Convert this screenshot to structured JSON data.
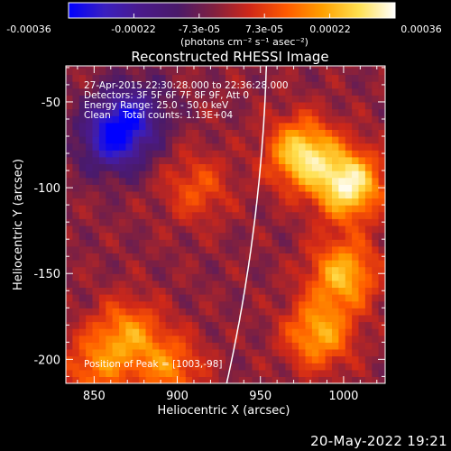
{
  "chart_data": {
    "type": "heatmap",
    "title": "Reconstructed RHESSI Image",
    "xlabel": "Heliocentric X (arcsec)",
    "ylabel": "Heliocentric Y (arcsec)",
    "xlim": [
      833,
      1025
    ],
    "ylim": [
      -214,
      -29
    ],
    "x_ticks": [
      850,
      900,
      950,
      1000
    ],
    "y_ticks": [
      -50,
      -100,
      -150,
      -200
    ],
    "colorbar": {
      "ticks": [
        "-0.00036",
        "-0.00022",
        "-7.3e-05",
        "7.3e-05",
        "0.00022",
        "0.00036"
      ],
      "range": [
        -0.00036,
        0.00036
      ],
      "unit_label": "(photons cm⁻² s⁻¹ asec⁻²)",
      "colors": [
        "#0000ff",
        "#3a1fbf",
        "#4a1a8a",
        "#4a1a6a",
        "#802040",
        "#d02818",
        "#ff5a00",
        "#ffa000",
        "#ffe050",
        "#ffffff"
      ]
    },
    "info_lines": [
      "27-Apr-2015 22:30:28.000 to 22:36:28.000",
      "Detectors: 3F 5F 6F 7F 8F 9F, Att 0",
      "Energy Range: 25.0 - 50.0 keV",
      "Clean    Total counts: 1.13E+04"
    ],
    "peak_label": "Position of Peak = [1003,-98]",
    "peak": [
      1003,
      -98
    ],
    "limb_color": "#ffffff",
    "sources": [
      {
        "x": 975,
        "y": -80,
        "value": 0.00032
      },
      {
        "x": 1003,
        "y": -98,
        "value": 0.00036
      },
      {
        "x": 1000,
        "y": -150,
        "value": 0.00026
      },
      {
        "x": 985,
        "y": -185,
        "value": 0.00024
      },
      {
        "x": 912,
        "y": -100,
        "value": 0.00013
      },
      {
        "x": 870,
        "y": -185,
        "value": 0.0002
      },
      {
        "x": 895,
        "y": -205,
        "value": 0.00018
      },
      {
        "x": 850,
        "y": -205,
        "value": 0.00016
      },
      {
        "x": 862,
        "y": -70,
        "value": -0.0003
      },
      {
        "x": 875,
        "y": -55,
        "value": -0.00015
      }
    ]
  },
  "footer": {
    "timestamp": "20-May-2022 19:21"
  }
}
